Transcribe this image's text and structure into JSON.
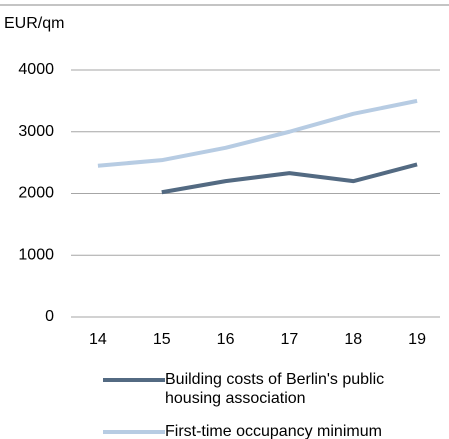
{
  "chart_data": {
    "type": "line",
    "y_label": "EUR/qm",
    "categories": [
      "14",
      "15",
      "16",
      "17",
      "18",
      "19"
    ],
    "series": [
      {
        "name": "Building costs of Berlin's public housing association",
        "color": "#536a82",
        "values": [
          null,
          2020,
          2200,
          2330,
          2200,
          2470
        ]
      },
      {
        "name": "First-time occupancy minimum",
        "color": "#b7cce3",
        "values": [
          2450,
          2540,
          2740,
          3000,
          3290,
          3500
        ]
      }
    ],
    "ylim": [
      0,
      4000
    ],
    "yticks": [
      0,
      1000,
      2000,
      3000,
      4000
    ],
    "grid": true
  }
}
